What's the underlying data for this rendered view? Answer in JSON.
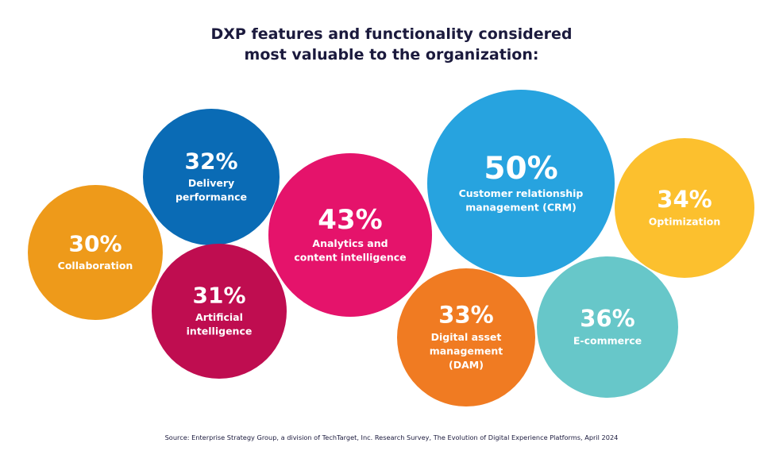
{
  "title": {
    "line1": "DXP features and functionality considered",
    "line2": "most valuable to the organization:"
  },
  "source": "Source: Enterprise Strategy Group, a division of TechTarget, Inc. Research Survey, The Evolution of Digital Experience Platforms, April 2024",
  "chart_data": {
    "type": "bubble",
    "title": "DXP features and functionality considered most valuable to the organization:",
    "unit": "%",
    "items": [
      {
        "id": "collaboration",
        "label_lines": [
          "Collaboration"
        ],
        "value": 30,
        "value_label": "30%",
        "color": "#ee9a1a"
      },
      {
        "id": "delivery",
        "label_lines": [
          "Delivery",
          "performance"
        ],
        "value": 32,
        "value_label": "32%",
        "color": "#0a6bb5"
      },
      {
        "id": "ai",
        "label_lines": [
          "Artificial",
          "intelligence"
        ],
        "value": 31,
        "value_label": "31%",
        "color": "#bf0d50"
      },
      {
        "id": "analytics",
        "label_lines": [
          "Analytics and",
          "content intelligence"
        ],
        "value": 43,
        "value_label": "43%",
        "color": "#e5136b"
      },
      {
        "id": "crm",
        "label_lines": [
          "Customer relationship",
          "management (CRM)"
        ],
        "value": 50,
        "value_label": "50%",
        "color": "#27a3df"
      },
      {
        "id": "dam",
        "label_lines": [
          "Digital asset",
          "management",
          "(DAM)"
        ],
        "value": 33,
        "value_label": "33%",
        "color": "#f07b22"
      },
      {
        "id": "ecommerce",
        "label_lines": [
          "E-commerce"
        ],
        "value": 36,
        "value_label": "36%",
        "color": "#67c7c9"
      },
      {
        "id": "optimization",
        "label_lines": [
          "Optimization"
        ],
        "value": 34,
        "value_label": "34%",
        "color": "#fcc02e"
      }
    ]
  }
}
